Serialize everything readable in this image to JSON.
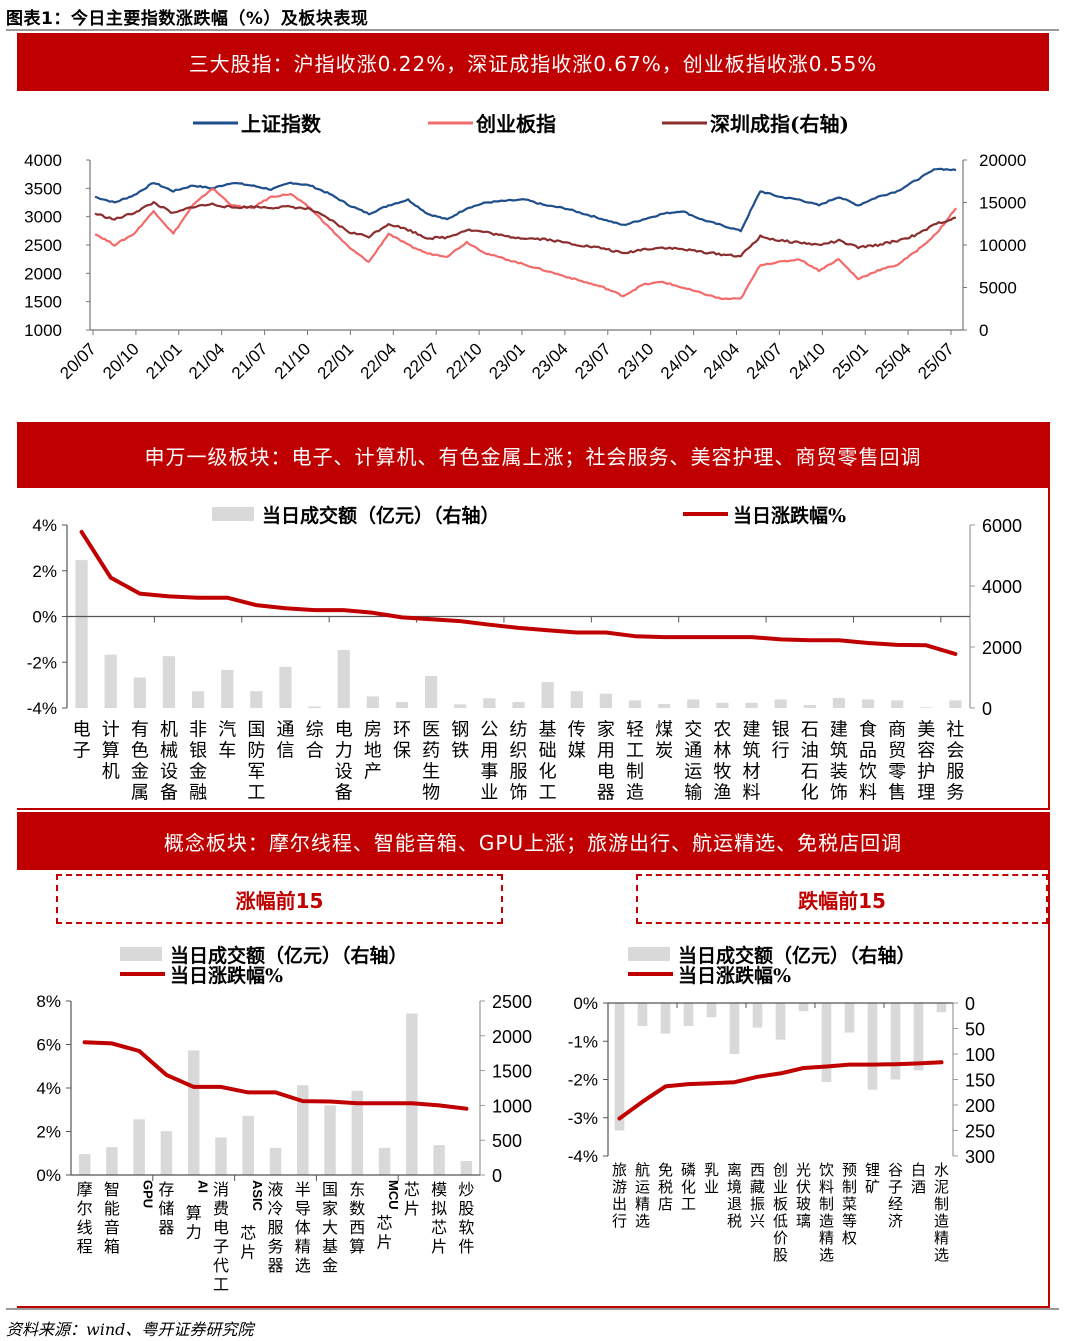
{
  "figure": {
    "title": "图表1：今日主要指数涨跌幅（%）及板块表现",
    "source": "资料来源：wind、粤开证券研究院",
    "colors": {
      "banner": "#c00000",
      "sh": "#1f4e8c",
      "cyb": "#f26b6b",
      "sz": "#8b2e2e",
      "bar": "#d9d9d9",
      "line": "#c00000"
    }
  },
  "banners": {
    "indices": "三大股指：沪指收涨0.22%，深证成指收涨0.67%，创业板指收涨0.55%",
    "sw": "申万一级板块：电子、计算机、有色金属上涨；社会服务、美容护理、商贸零售回调",
    "concept": "概念板块：摩尔线程、智能音箱、GPU上涨；旅游出行、航运精选、免税店回调",
    "top15": "涨幅前15",
    "bottom15": "跌幅前15"
  },
  "chart_data": [
    {
      "id": "index_trend",
      "type": "line",
      "title": "",
      "legend": [
        "上证指数",
        "创业板指",
        "深圳成指(右轴)"
      ],
      "legend_position": "top",
      "x_ticks": [
        "20/07",
        "20/10",
        "21/01",
        "21/04",
        "21/07",
        "21/10",
        "22/01",
        "22/04",
        "22/07",
        "22/10",
        "23/01",
        "23/04",
        "23/07",
        "23/10",
        "24/01",
        "24/04",
        "24/07",
        "24/10",
        "25/01",
        "25/04",
        "25/07"
      ],
      "ylim_left": [
        1000,
        4000
      ],
      "yticks_left": [
        1000,
        1500,
        2000,
        2500,
        3000,
        3500,
        4000
      ],
      "ylim_right": [
        0,
        20000
      ],
      "yticks_right": [
        0,
        5000,
        10000,
        15000,
        20000
      ],
      "grid": false,
      "series": [
        {
          "name": "上证指数",
          "axis": "left",
          "color": "#1f4e8c",
          "values": [
            3350,
            3250,
            3380,
            3600,
            3450,
            3550,
            3500,
            3600,
            3550,
            3480,
            3600,
            3550,
            3400,
            3200,
            3050,
            3200,
            3300,
            3050,
            2950,
            3150,
            3250,
            3280,
            3300,
            3200,
            3150,
            3050,
            2950,
            2850,
            2950,
            3050,
            3100,
            2950,
            2850,
            2750,
            3450,
            3350,
            3300,
            3200,
            3350,
            3200,
            3350,
            3450,
            3650,
            3850,
            3820
          ]
        },
        {
          "name": "创业板指",
          "axis": "left",
          "color": "#f26b6b",
          "values": [
            2700,
            2500,
            2700,
            3100,
            2700,
            3200,
            3500,
            3200,
            3150,
            3350,
            3400,
            3150,
            2800,
            2450,
            2200,
            2700,
            2500,
            2350,
            2300,
            2550,
            2350,
            2250,
            2150,
            2050,
            1950,
            1850,
            1750,
            1600,
            1800,
            1850,
            1750,
            1650,
            1550,
            1550,
            2150,
            2200,
            2250,
            2050,
            2250,
            1900,
            2050,
            2150,
            2400,
            2700,
            3150
          ]
        },
        {
          "name": "深圳成指(右轴)",
          "axis": "right",
          "color": "#8b2e2e",
          "values": [
            13700,
            13000,
            13800,
            15000,
            13700,
            14500,
            14800,
            14400,
            14500,
            14400,
            14500,
            14200,
            13000,
            11500,
            11000,
            12500,
            11800,
            10800,
            10900,
            11800,
            11500,
            11000,
            10800,
            10700,
            10300,
            9900,
            9600,
            9000,
            9500,
            9700,
            9500,
            9200,
            8900,
            8700,
            11000,
            10500,
            10300,
            10000,
            10500,
            9700,
            10000,
            10500,
            11200,
            12500,
            13200
          ]
        }
      ]
    },
    {
      "id": "sw_level1",
      "type": "bar+line",
      "legend": [
        "当日成交额（亿元）（右轴）",
        "当日涨跌幅%"
      ],
      "categories": [
        "电子",
        "计算机",
        "有色金属",
        "机械设备",
        "非银金融",
        "汽车",
        "国防军工",
        "通信",
        "综合",
        "电力设备",
        "房地产",
        "环保",
        "医药生物",
        "钢铁",
        "公用事业",
        "纺织服饰",
        "基础化工",
        "传媒",
        "家用电器",
        "轻工制造",
        "煤炭",
        "交通运输",
        "农林牧渔",
        "建筑材料",
        "银行",
        "石油石化",
        "建筑装饰",
        "食品饮料",
        "商贸零售",
        "美容护理",
        "社会服务"
      ],
      "ylim_left": [
        -4,
        4
      ],
      "yticks_left": [
        "4%",
        "2%",
        "0%",
        "-2%",
        "-4%"
      ],
      "ylim_right": [
        0,
        6000
      ],
      "yticks_right": [
        0,
        2000,
        4000,
        6000
      ],
      "series": [
        {
          "name": "当日成交额（亿元）（右轴）",
          "type": "bar",
          "axis": "right",
          "values": [
            4850,
            1750,
            1000,
            1700,
            550,
            1250,
            550,
            1350,
            50,
            1900,
            380,
            200,
            1050,
            120,
            320,
            200,
            850,
            550,
            470,
            250,
            130,
            280,
            170,
            170,
            280,
            100,
            330,
            280,
            250,
            20,
            250
          ]
        },
        {
          "name": "当日涨跌幅%",
          "type": "line",
          "axis": "left",
          "values": [
            3.7,
            1.7,
            1.0,
            0.88,
            0.82,
            0.82,
            0.5,
            0.36,
            0.28,
            0.28,
            0.16,
            -0.04,
            -0.12,
            -0.2,
            -0.36,
            -0.5,
            -0.6,
            -0.7,
            -0.7,
            -0.86,
            -0.9,
            -0.9,
            -0.9,
            -0.9,
            -1.0,
            -1.04,
            -1.04,
            -1.16,
            -1.24,
            -1.26,
            -1.64
          ]
        }
      ]
    },
    {
      "id": "concept_top15",
      "type": "bar+line",
      "title": "涨幅前15",
      "legend": [
        "当日成交额（亿元）（右轴）",
        "当日涨跌幅%"
      ],
      "categories": [
        "摩尔线程",
        "智能音箱",
        "GPU",
        "存储器",
        "AI算力",
        "消费电子代工",
        "ASIC芯片",
        "液冷服务器",
        "半导体精选",
        "国家大基金",
        "东数西算",
        "MCU芯片",
        "芯片",
        "模拟芯片",
        "炒股软件"
      ],
      "ylim_left": [
        0,
        8
      ],
      "yticks_left": [
        "0%",
        "2%",
        "4%",
        "6%",
        "8%"
      ],
      "ylim_right": [
        0,
        2500
      ],
      "yticks_right": [
        0,
        500,
        1000,
        1500,
        2000,
        2500
      ],
      "series": [
        {
          "name": "当日成交额（亿元）（右轴）",
          "type": "bar",
          "axis": "right",
          "values": [
            300,
            400,
            800,
            630,
            1790,
            540,
            850,
            390,
            1290,
            1000,
            1210,
            390,
            2320,
            430,
            200
          ]
        },
        {
          "name": "当日涨跌幅%",
          "type": "line",
          "axis": "left",
          "values": [
            6.1,
            6.05,
            5.7,
            4.6,
            4.05,
            4.05,
            3.8,
            3.8,
            3.4,
            3.38,
            3.3,
            3.3,
            3.3,
            3.2,
            3.05
          ]
        }
      ]
    },
    {
      "id": "concept_bottom15",
      "type": "bar+line",
      "title": "跌幅前15",
      "legend": [
        "当日成交额（亿元）（右轴）",
        "当日涨跌幅%"
      ],
      "categories": [
        "旅游出行",
        "航运精选",
        "免税店",
        "磷化工",
        "乳业",
        "离境退税",
        "西藏振兴",
        "创业板低价股",
        "光伏玻璃",
        "饮料制造精选",
        "预制菜等权",
        "锂矿",
        "谷子经济",
        "白酒",
        "水泥制造精选"
      ],
      "ylim_left": [
        -4,
        0
      ],
      "yticks_left": [
        "0%",
        "-1%",
        "-2%",
        "-3%",
        "-4%"
      ],
      "ylim_right": [
        300,
        0
      ],
      "yticks_right": [
        0,
        50,
        100,
        150,
        200,
        250,
        300
      ],
      "right_axis_inverted": true,
      "series": [
        {
          "name": "当日成交额（亿元）（右轴）",
          "type": "bar",
          "axis": "right",
          "values": [
            250,
            45,
            60,
            45,
            28,
            100,
            48,
            72,
            16,
            155,
            58,
            170,
            150,
            132,
            18
          ]
        },
        {
          "name": "当日涨跌幅%",
          "type": "line",
          "axis": "left",
          "values": [
            -3.02,
            -2.58,
            -2.18,
            -2.12,
            -2.1,
            -2.07,
            -1.93,
            -1.84,
            -1.7,
            -1.66,
            -1.61,
            -1.61,
            -1.6,
            -1.58,
            -1.55
          ]
        }
      ]
    }
  ]
}
